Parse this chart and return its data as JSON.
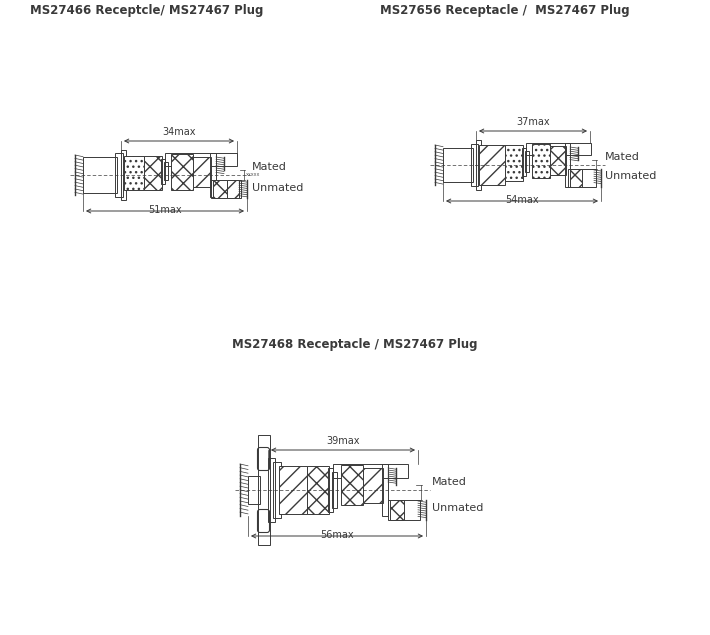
{
  "title1": "MS27466 Receptcle/ MS27467 Plug",
  "title2": "MS27656 Receptacle /  MS27467 Plug",
  "title3": "MS27468 Receptacle / MS27467 Plug",
  "dim1_top": "34max",
  "dim1_bot": "51max",
  "dim2_top": "37max",
  "dim2_bot": "54max",
  "dim3_top": "39max",
  "dim3_bot": "56max",
  "label_mated": "Mated",
  "label_unmated": "Unmated",
  "bg_color": "#ffffff",
  "line_color": "#3a3a3a",
  "title_fontsize": 8.5,
  "dim_fontsize": 7.0,
  "label_fontsize": 8.0
}
